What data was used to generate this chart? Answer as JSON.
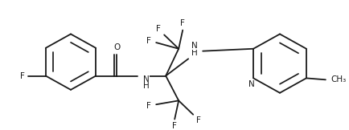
{
  "bg_color": "#ffffff",
  "line_color": "#1a1a1a",
  "font_size": 7.5,
  "line_width": 1.3,
  "figsize": [
    4.34,
    1.62
  ],
  "dpi": 100,
  "xlim": [
    0,
    434
  ],
  "ylim": [
    0,
    162
  ]
}
